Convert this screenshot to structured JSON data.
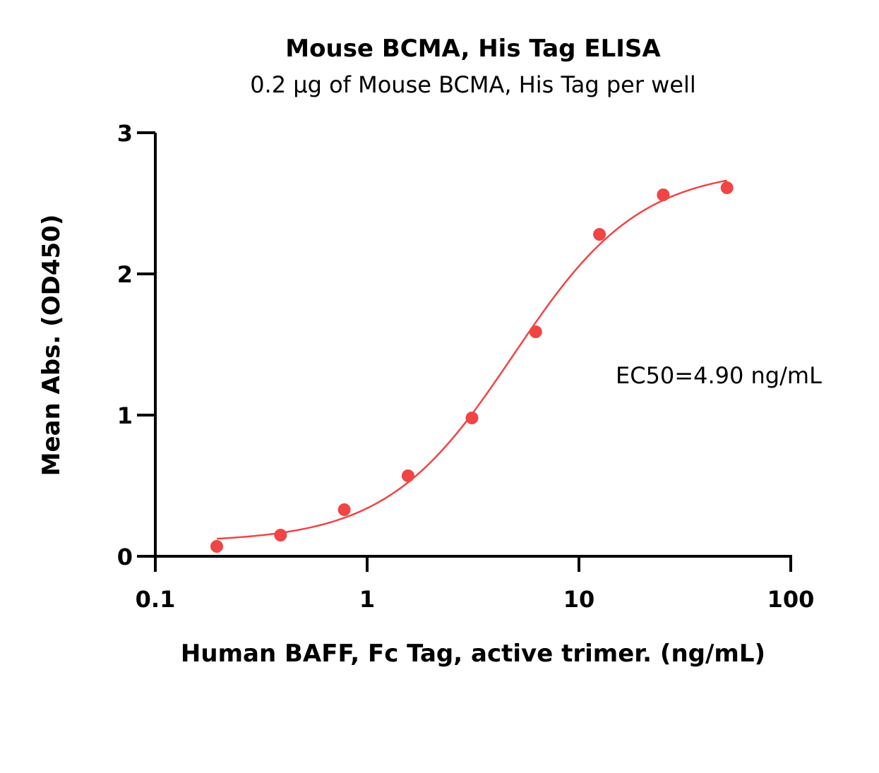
{
  "chart_data": {
    "type": "scatter",
    "title": "Mouse BCMA, His Tag ELISA",
    "subtitle": "0.2 µg of Mouse BCMA, His Tag per well",
    "xlabel": "Human BAFF, Fc Tag, active trimer. (ng/mL)",
    "ylabel": "Mean Abs. (OD450)",
    "x_scale": "log",
    "xlim": [
      0.1,
      100
    ],
    "ylim": [
      0,
      3
    ],
    "x_ticks": [
      0.1,
      1,
      10,
      100
    ],
    "x_tick_labels": [
      "0.1",
      "1",
      "10",
      "100"
    ],
    "y_ticks": [
      0,
      1,
      2,
      3
    ],
    "y_tick_labels": [
      "0",
      "1",
      "2",
      "3"
    ],
    "grid": false,
    "annotation": "EC50=4.90 ng/mL",
    "color": "#f04545",
    "series": [
      {
        "x": [
          0.195,
          0.39,
          0.78,
          1.56,
          3.125,
          6.25,
          12.5,
          25,
          50
        ],
        "y": [
          0.07,
          0.15,
          0.33,
          0.57,
          0.98,
          1.59,
          2.28,
          2.56,
          2.61
        ]
      }
    ],
    "fit_curve": {
      "model": "4PL",
      "bottom": 0.1,
      "top": 2.75,
      "ec50": 4.9,
      "hill": 1.45,
      "x_range": [
        0.195,
        50
      ]
    }
  }
}
